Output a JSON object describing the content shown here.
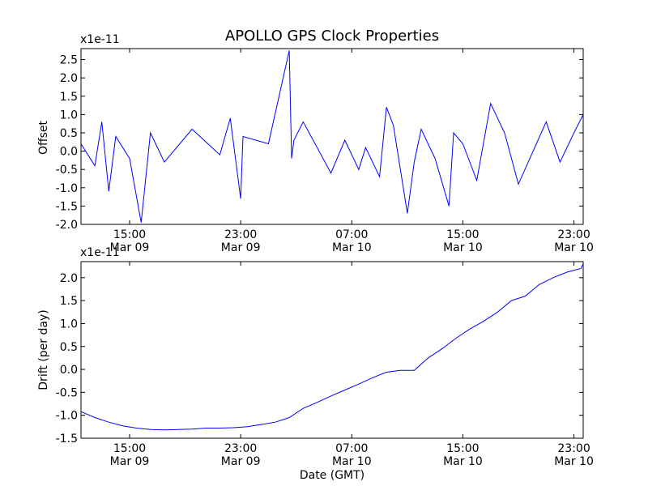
{
  "chart_data": [
    {
      "type": "line",
      "title": "APOLLO GPS Clock Properties",
      "xlabel": "",
      "ylabel": "Offset",
      "scale_label": "x1e-11",
      "ylim": [
        -2.0,
        2.8
      ],
      "yticks": [
        -2.0,
        -1.5,
        -1.0,
        -0.5,
        0.0,
        0.5,
        1.0,
        1.5,
        2.0,
        2.5
      ],
      "ytick_labels": [
        "-2.0",
        "-1.5",
        "-1.0",
        "-0.5",
        "0.0",
        "0.5",
        "1.0",
        "1.5",
        "2.0",
        "2.5"
      ],
      "xlim": [
        "2010-03-09 11:30",
        "2010-03-10 23:40"
      ],
      "xticks": [
        "2010-03-09 15:00",
        "2010-03-09 23:00",
        "2010-03-10 07:00",
        "2010-03-10 15:00",
        "2010-03-10 23:00"
      ],
      "xtick_labels": [
        [
          "15:00",
          "Mar 09"
        ],
        [
          "23:00",
          "Mar 09"
        ],
        [
          "07:00",
          "Mar 10"
        ],
        [
          "15:00",
          "Mar 10"
        ],
        [
          "23:00",
          "Mar 10"
        ]
      ],
      "grid": false,
      "series_color": "#0000ff",
      "series": [
        {
          "name": "",
          "x": [
            "2010-03-09 11:30",
            "2010-03-09 12:30",
            "2010-03-09 13:00",
            "2010-03-09 13:30",
            "2010-03-09 14:00",
            "2010-03-09 15:00",
            "2010-03-09 15:50",
            "2010-03-09 16:30",
            "2010-03-09 17:30",
            "2010-03-09 19:30",
            "2010-03-09 21:30",
            "2010-03-09 22:15",
            "2010-03-09 23:00",
            "2010-03-09 23:10",
            "2010-03-10 01:00",
            "2010-03-10 02:30",
            "2010-03-10 02:40",
            "2010-03-10 02:50",
            "2010-03-10 03:30",
            "2010-03-10 05:30",
            "2010-03-10 06:30",
            "2010-03-10 07:30",
            "2010-03-10 08:00",
            "2010-03-10 09:00",
            "2010-03-10 09:30",
            "2010-03-10 10:00",
            "2010-03-10 11:00",
            "2010-03-10 11:30",
            "2010-03-10 12:00",
            "2010-03-10 13:00",
            "2010-03-10 14:00",
            "2010-03-10 14:20",
            "2010-03-10 15:00",
            "2010-03-10 16:00",
            "2010-03-10 17:00",
            "2010-03-10 18:00",
            "2010-03-10 19:00",
            "2010-03-10 21:00",
            "2010-03-10 22:00",
            "2010-03-10 23:00",
            "2010-03-10 23:40"
          ],
          "y": [
            0.2,
            -0.4,
            0.8,
            -1.1,
            0.4,
            -0.2,
            -1.95,
            0.5,
            -0.3,
            0.6,
            -0.1,
            0.9,
            -1.3,
            0.4,
            0.2,
            2.75,
            -0.2,
            0.3,
            0.8,
            -0.6,
            0.3,
            -0.5,
            0.1,
            -0.7,
            1.2,
            0.7,
            -1.7,
            -0.3,
            0.6,
            -0.2,
            -1.5,
            0.5,
            0.2,
            -0.8,
            1.3,
            0.5,
            -0.9,
            0.8,
            -0.3,
            0.5,
            1.0
          ]
        }
      ]
    },
    {
      "type": "line",
      "title": "",
      "xlabel": "Date (GMT)",
      "ylabel": "Drift (per day)",
      "scale_label": "x1e-11",
      "ylim": [
        -1.5,
        2.35
      ],
      "yticks": [
        -1.5,
        -1.0,
        -0.5,
        0.0,
        0.5,
        1.0,
        1.5,
        2.0
      ],
      "ytick_labels": [
        "-1.5",
        "-1.0",
        "-0.5",
        "0.0",
        "0.5",
        "1.0",
        "1.5",
        "2.0"
      ],
      "xlim": [
        "2010-03-09 11:30",
        "2010-03-10 23:40"
      ],
      "xticks": [
        "2010-03-09 15:00",
        "2010-03-09 23:00",
        "2010-03-10 07:00",
        "2010-03-10 15:00",
        "2010-03-10 23:00"
      ],
      "xtick_labels": [
        [
          "15:00",
          "Mar 09"
        ],
        [
          "23:00",
          "Mar 09"
        ],
        [
          "07:00",
          "Mar 10"
        ],
        [
          "15:00",
          "Mar 10"
        ],
        [
          "23:00",
          "Mar 10"
        ]
      ],
      "grid": false,
      "series_color": "#0000ff",
      "series": [
        {
          "name": "",
          "x": [
            "2010-03-09 11:30",
            "2010-03-09 12:30",
            "2010-03-09 13:30",
            "2010-03-09 14:30",
            "2010-03-09 15:30",
            "2010-03-09 16:30",
            "2010-03-09 17:30",
            "2010-03-09 18:30",
            "2010-03-09 19:30",
            "2010-03-09 20:30",
            "2010-03-09 21:30",
            "2010-03-09 22:30",
            "2010-03-09 23:30",
            "2010-03-10 00:30",
            "2010-03-10 01:30",
            "2010-03-10 02:30",
            "2010-03-10 03:30",
            "2010-03-10 04:30",
            "2010-03-10 05:30",
            "2010-03-10 06:30",
            "2010-03-10 07:30",
            "2010-03-10 08:30",
            "2010-03-10 09:30",
            "2010-03-10 10:30",
            "2010-03-10 11:30",
            "2010-03-10 12:30",
            "2010-03-10 13:30",
            "2010-03-10 14:30",
            "2010-03-10 15:30",
            "2010-03-10 16:30",
            "2010-03-10 17:30",
            "2010-03-10 18:30",
            "2010-03-10 19:30",
            "2010-03-10 20:30",
            "2010-03-10 21:30",
            "2010-03-10 22:30",
            "2010-03-10 23:30",
            "2010-03-10 23:40"
          ],
          "y": [
            -0.92,
            -1.05,
            -1.15,
            -1.23,
            -1.28,
            -1.31,
            -1.32,
            -1.31,
            -1.3,
            -1.28,
            -1.28,
            -1.27,
            -1.25,
            -1.2,
            -1.15,
            -1.05,
            -0.85,
            -0.72,
            -0.58,
            -0.45,
            -0.32,
            -0.18,
            -0.06,
            -0.02,
            -0.02,
            0.25,
            0.45,
            0.68,
            0.88,
            1.05,
            1.25,
            1.5,
            1.6,
            1.85,
            2.0,
            2.12,
            2.2,
            2.3
          ]
        }
      ]
    }
  ]
}
